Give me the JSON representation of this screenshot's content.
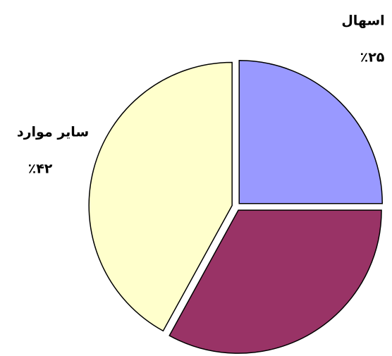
{
  "chart_data": {
    "type": "pie",
    "categories": [
      "اسهال",
      null,
      "سایر موارد"
    ],
    "values": [
      25,
      33,
      42
    ],
    "value_labels": [
      "٪۲۵",
      null,
      "٪۴۲"
    ],
    "colors": [
      "#9999ff",
      "#993366",
      "#ffffcc"
    ]
  }
}
